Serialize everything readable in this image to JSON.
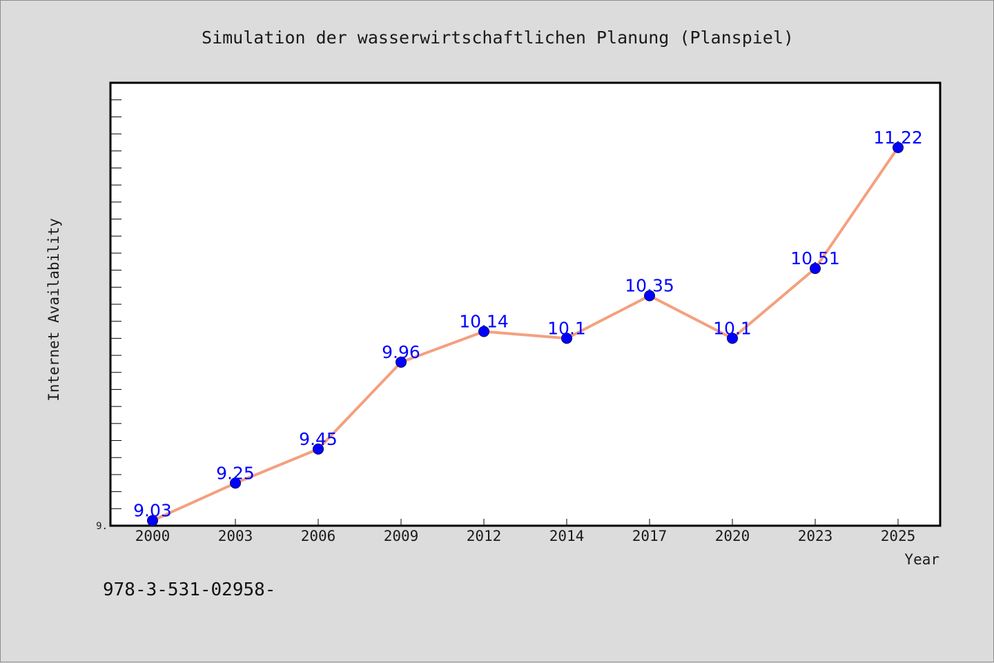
{
  "chart_data": {
    "type": "line",
    "title": "Simulation der wasserwirtschaftlichen Planung (Planspiel)",
    "xlabel": "Year",
    "ylabel": "Internet Availability",
    "categories": [
      "2000",
      "2003",
      "2006",
      "2009",
      "2012",
      "2014",
      "2017",
      "2020",
      "2023",
      "2025"
    ],
    "series": [
      {
        "values": [
          9.03,
          9.25,
          9.45,
          9.96,
          10.14,
          10.1,
          10.35,
          10.1,
          10.51,
          11.22
        ],
        "labels": [
          "9.03",
          "9.25",
          "9.45",
          "9.96",
          "10.14",
          "10.1",
          "10.35",
          "10.1",
          "10.51",
          "11.22"
        ]
      }
    ],
    "ylim": [
      9.0,
      11.6
    ],
    "y_tick_labels": [
      "9."
    ],
    "grid": false,
    "line_color": "#f4a07f",
    "marker_color": "#0000ff",
    "label_color": "#0000ff"
  },
  "footer": {
    "text": "978-3-531-02958-"
  }
}
